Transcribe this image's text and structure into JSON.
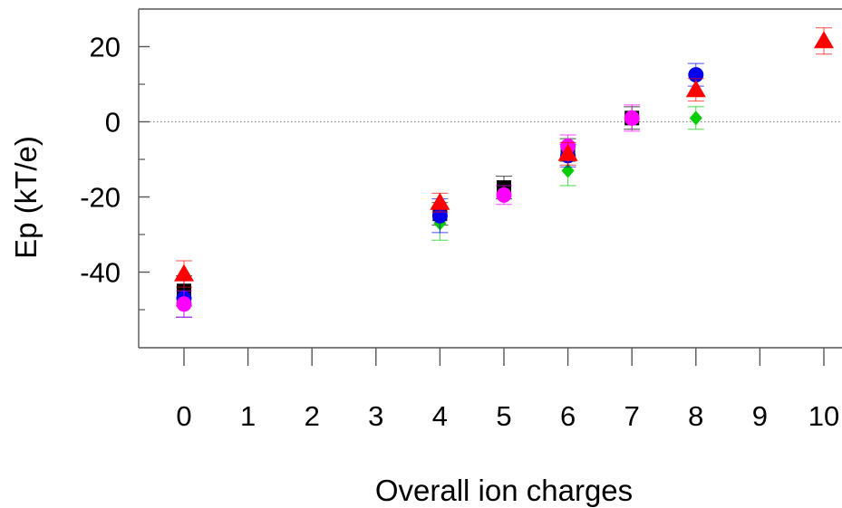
{
  "chart_data": {
    "type": "scatter",
    "title": "",
    "xlabel": "Overall ion charges",
    "ylabel": "Ep (kT/e)",
    "xticks": [
      {
        "x": 0,
        "label": "0"
      },
      {
        "x": 1,
        "label": "1"
      },
      {
        "x": 2,
        "label": "2"
      },
      {
        "x": 3,
        "label": "3"
      },
      {
        "x": 4,
        "label": "4"
      },
      {
        "x": 5,
        "label": "5"
      },
      {
        "x": 6,
        "label": "6"
      },
      {
        "x": 7,
        "label": "7"
      },
      {
        "x": 8,
        "label": "8"
      },
      {
        "x": 9,
        "label": "9"
      },
      {
        "x": 10,
        "label": "10"
      }
    ],
    "yticks_major": [
      {
        "y": 20,
        "label": "20"
      },
      {
        "y": 0,
        "label": "0"
      },
      {
        "y": -20,
        "label": "-20"
      },
      {
        "y": -40,
        "label": "-40"
      }
    ],
    "yticks_minor": [
      10,
      -10,
      -30,
      -50
    ],
    "xlim": [
      -0.4,
      10.1
    ],
    "ylim": [
      -60,
      30
    ],
    "reference_line_y": 0,
    "grid": false,
    "legend": "none",
    "series": [
      {
        "marker": "square",
        "color": "#000000",
        "points": [
          {
            "x": 0,
            "y": -45,
            "err": 4
          },
          {
            "x": 4,
            "y": -24.5,
            "err": 3
          },
          {
            "x": 5,
            "y": -17.5,
            "err": 3
          },
          {
            "x": 6,
            "y": -7.5,
            "err": 3
          },
          {
            "x": 7,
            "y": 1,
            "err": 3
          }
        ]
      },
      {
        "marker": "diamond",
        "color": "#00cc00",
        "points": [
          {
            "x": 0,
            "y": -47,
            "err": 5
          },
          {
            "x": 4,
            "y": -27,
            "err": 4.5
          },
          {
            "x": 6,
            "y": -13,
            "err": 4
          },
          {
            "x": 8,
            "y": 1,
            "err": 3
          }
        ]
      },
      {
        "marker": "circle",
        "color": "#0000ee",
        "points": [
          {
            "x": 0,
            "y": -47,
            "err": 5
          },
          {
            "x": 4,
            "y": -25,
            "err": 4.5
          },
          {
            "x": 6,
            "y": -9,
            "err": 3
          },
          {
            "x": 8,
            "y": 12.5,
            "err": 3
          }
        ]
      },
      {
        "marker": "circle",
        "color": "#ff00ff",
        "points": [
          {
            "x": 0,
            "y": -48.5,
            "err": 3.5
          },
          {
            "x": 5,
            "y": -19.5,
            "err": 2.5
          },
          {
            "x": 6,
            "y": -6.5,
            "err": 3
          },
          {
            "x": 7,
            "y": 1,
            "err": 3.5
          }
        ]
      },
      {
        "marker": "triangle",
        "color": "#ff0000",
        "points": [
          {
            "x": 0,
            "y": -40.5,
            "err": 3.5
          },
          {
            "x": 4,
            "y": -21.5,
            "err": 2.5
          },
          {
            "x": 6,
            "y": -8.5,
            "err": 3
          },
          {
            "x": 8,
            "y": 8.5,
            "err": 3
          },
          {
            "x": 10,
            "y": 21.5,
            "err": 3.5
          }
        ]
      }
    ]
  }
}
